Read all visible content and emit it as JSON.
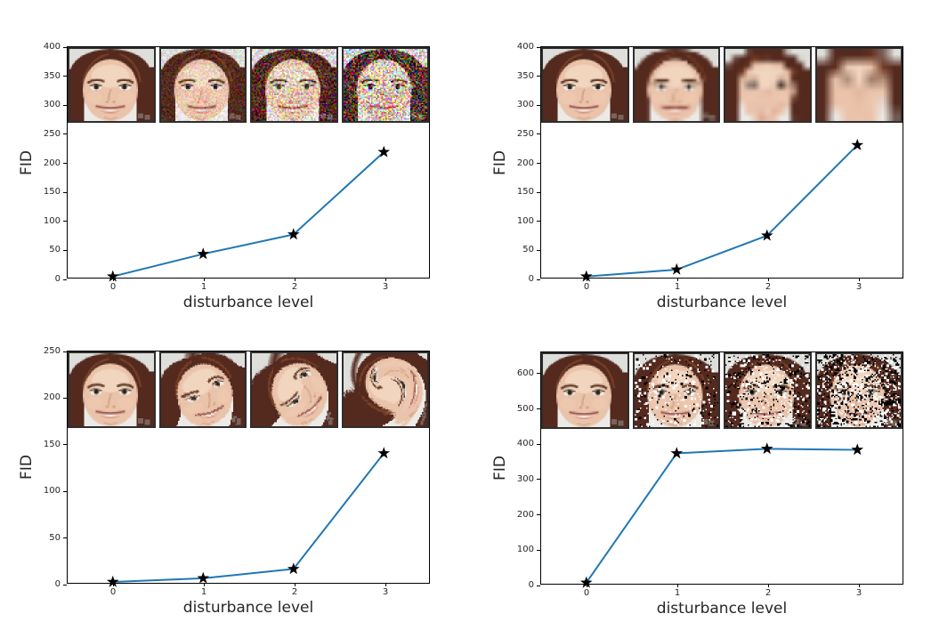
{
  "figure": {
    "background": "#ffffff",
    "line_color": "#1f77b4",
    "marker": "black-star",
    "marker_color": "#000000",
    "spine_color": "#000000",
    "inset_border_color": "#2e2e2e",
    "xlabel": "disturbance level",
    "ylabel": "FID"
  },
  "chart_data": [
    {
      "type": "line",
      "position": "top-left",
      "disturbance": "gaussian-noise",
      "inset_images": [
        "clean face",
        "face with light noise",
        "face with medium noise",
        "face with heavy noise"
      ],
      "xlabel": "disturbance level",
      "ylabel": "FID",
      "x": [
        0,
        1,
        2,
        3
      ],
      "values": [
        2,
        41,
        75,
        218
      ],
      "ylim": [
        0,
        400
      ],
      "yticks": [
        0,
        50,
        100,
        150,
        200,
        250,
        300,
        350,
        400
      ],
      "xticks": [
        "0",
        "1",
        "2",
        "3"
      ],
      "grid": false,
      "legend": "none"
    },
    {
      "type": "line",
      "position": "top-right",
      "disturbance": "gaussian-blur",
      "inset_images": [
        "clean face",
        "face with light blur",
        "face with medium blur",
        "face with heavy blur"
      ],
      "xlabel": "disturbance level",
      "ylabel": "FID",
      "x": [
        0,
        1,
        2,
        3
      ],
      "values": [
        2,
        14,
        73,
        230
      ],
      "ylim": [
        0,
        400
      ],
      "yticks": [
        0,
        50,
        100,
        150,
        200,
        250,
        300,
        350,
        400
      ],
      "xticks": [
        "0",
        "1",
        "2",
        "3"
      ],
      "grid": false,
      "legend": "none"
    },
    {
      "type": "line",
      "position": "bottom-left",
      "disturbance": "swirl",
      "inset_images": [
        "clean face",
        "face with light swirl",
        "face with medium swirl",
        "face with heavy swirl"
      ],
      "xlabel": "disturbance level",
      "ylabel": "FID",
      "x": [
        0,
        1,
        2,
        3
      ],
      "values": [
        1,
        5,
        15,
        140
      ],
      "ylim": [
        0,
        250
      ],
      "yticks": [
        0,
        50,
        100,
        150,
        200,
        250
      ],
      "xticks": [
        "0",
        "1",
        "2",
        "3"
      ],
      "grid": false,
      "legend": "none"
    },
    {
      "type": "line",
      "position": "bottom-right",
      "disturbance": "salt-and-pepper",
      "inset_images": [
        "clean face",
        "face with light salt-pepper noise",
        "face with medium salt-pepper noise",
        "face with heavy salt-pepper noise"
      ],
      "xlabel": "disturbance level",
      "ylabel": "FID",
      "x": [
        0,
        1,
        2,
        3
      ],
      "values": [
        3,
        372,
        385,
        382
      ],
      "ylim": [
        0,
        660
      ],
      "yticks": [
        0,
        100,
        200,
        300,
        400,
        500,
        600
      ],
      "xticks": [
        "0",
        "1",
        "2",
        "3"
      ],
      "grid": false,
      "legend": "none"
    }
  ]
}
